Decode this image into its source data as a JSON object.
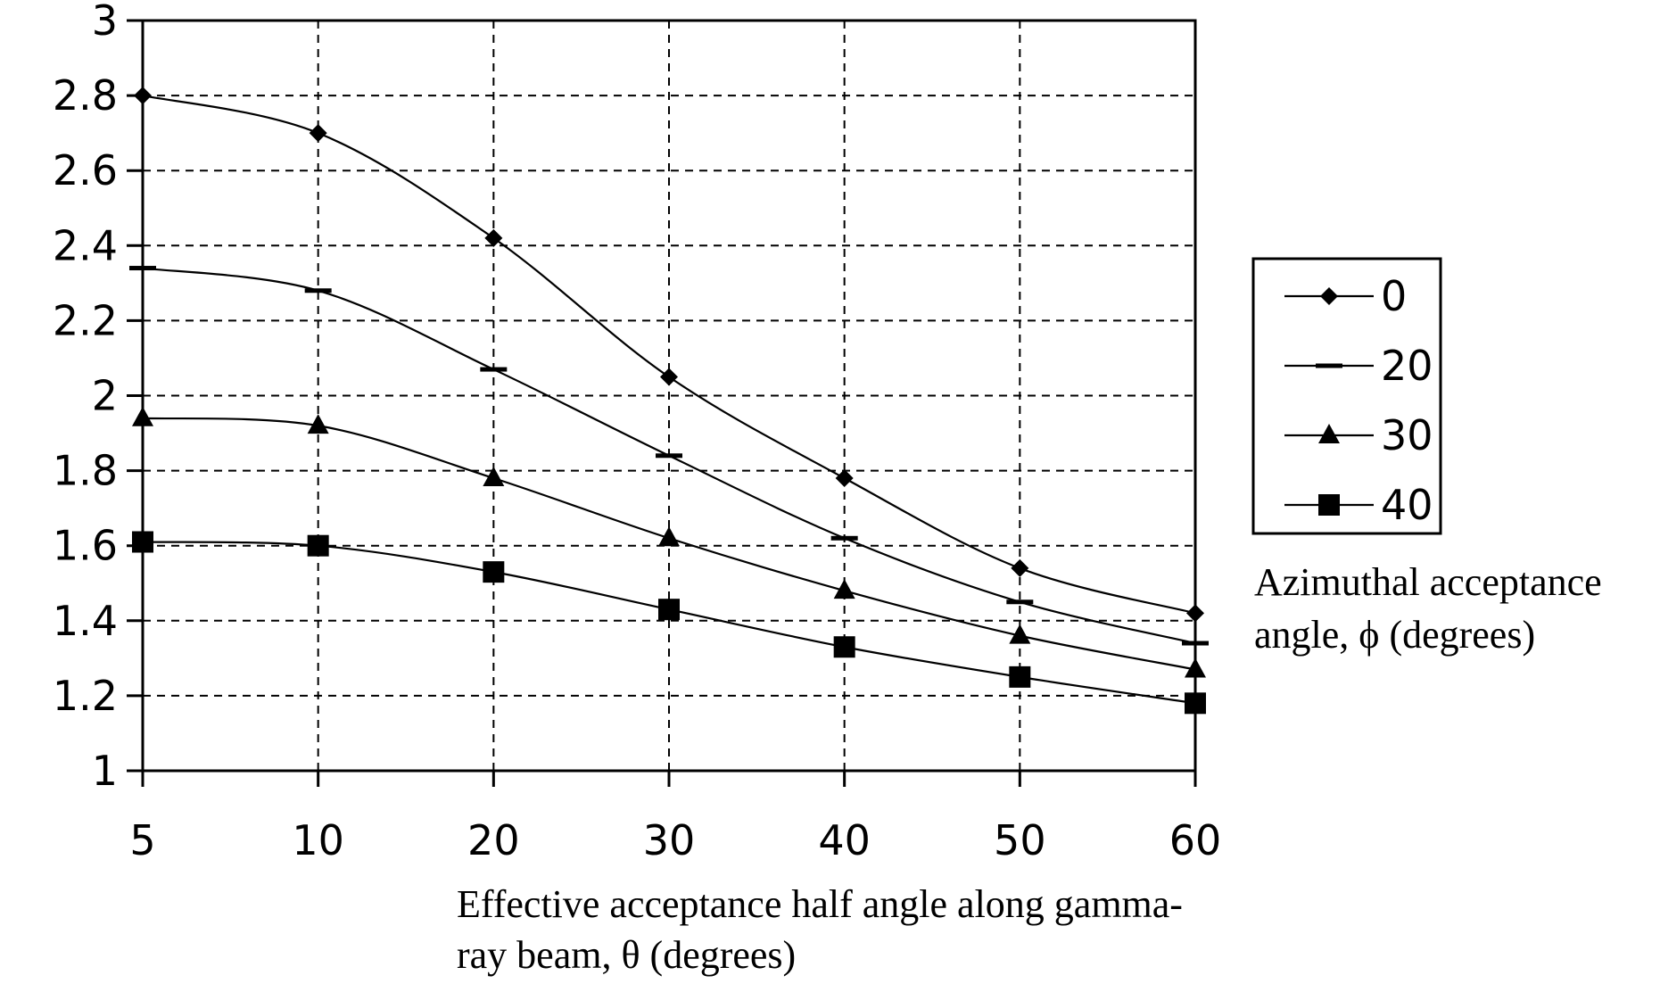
{
  "chart_data": {
    "type": "line",
    "title": "",
    "xlabel_lines": [
      "Effective acceptance half angle along gamma-",
      "ray beam, θ (degrees)"
    ],
    "ylabel": "",
    "x": [
      5,
      10,
      20,
      30,
      40,
      50,
      60
    ],
    "x_tick_labels": [
      "5",
      "10",
      "20",
      "30",
      "40",
      "50",
      "60"
    ],
    "ylim": [
      1,
      3
    ],
    "y_ticks": [
      1,
      1.2,
      1.4,
      1.6,
      1.8,
      2,
      2.2,
      2.4,
      2.6,
      2.8,
      3
    ],
    "y_tick_labels": [
      "1",
      "1.2",
      "1.4",
      "1.6",
      "1.8",
      "2",
      "2.2",
      "2.4",
      "2.6",
      "2.8",
      "3"
    ],
    "grid": true,
    "legend": {
      "placement": "right",
      "title_lines": [
        "Azimuthal acceptance",
        "angle, ϕ (degrees)"
      ]
    },
    "series": [
      {
        "name": "0",
        "marker": "diamond",
        "values": [
          2.8,
          2.7,
          2.42,
          2.05,
          1.78,
          1.54,
          1.42
        ]
      },
      {
        "name": "20",
        "marker": "dash",
        "values": [
          2.34,
          2.28,
          2.07,
          1.84,
          1.62,
          1.45,
          1.34
        ]
      },
      {
        "name": "30",
        "marker": "triangle",
        "values": [
          1.94,
          1.92,
          1.78,
          1.62,
          1.48,
          1.36,
          1.27
        ]
      },
      {
        "name": "40",
        "marker": "square",
        "values": [
          1.61,
          1.6,
          1.53,
          1.43,
          1.33,
          1.25,
          1.18
        ]
      }
    ]
  }
}
